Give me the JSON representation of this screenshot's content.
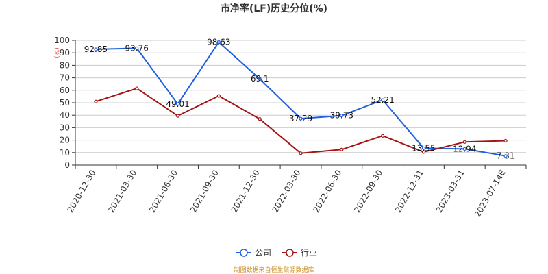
{
  "chart_data": {
    "type": "line",
    "title": "市净率(LF)历史分位(%)",
    "ylabel": "(%)",
    "xlabel": "",
    "ylim": [
      0,
      100
    ],
    "yticks": [
      0,
      10,
      20,
      30,
      40,
      50,
      60,
      70,
      80,
      90,
      100
    ],
    "categories": [
      "2020-12-30",
      "2021-03-30",
      "2021-06-30",
      "2021-09-30",
      "2021-12-30",
      "2022-03-30",
      "2022-06-30",
      "2022-09-30",
      "2022-12-31",
      "2023-03-31",
      "2023-07-14E"
    ],
    "grid": true,
    "legend_position": "bottom",
    "series": [
      {
        "name": "公司",
        "color": "#1f5fe0",
        "values": [
          92.85,
          93.76,
          49.01,
          98.63,
          69.1,
          37.29,
          39.73,
          52.21,
          13.55,
          12.94,
          7.31
        ],
        "labels": [
          "92.85",
          "93.76",
          "49.01",
          "98.63",
          "69.1",
          "37.29",
          "39.73",
          "52.21",
          "13.55",
          "12.94",
          "7.31"
        ]
      },
      {
        "name": "行业",
        "color": "#a31414",
        "values": [
          51,
          61.5,
          39.5,
          55.5,
          37,
          9.5,
          12.5,
          23.5,
          10.5,
          18.5,
          19.5
        ]
      }
    ]
  },
  "footer": {
    "source": "制图数据来自恒生聚源数据库"
  }
}
